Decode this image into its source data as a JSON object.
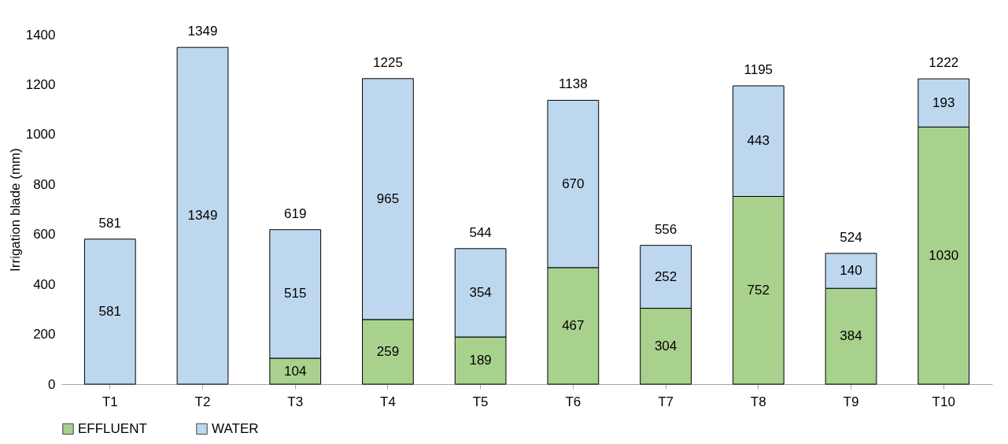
{
  "chart_data": {
    "type": "bar",
    "stacked": true,
    "ylabel": "Irrigation blade (mm)",
    "categories": [
      "T1",
      "T2",
      "T3",
      "T4",
      "T5",
      "T6",
      "T7",
      "T8",
      "T9",
      "T10"
    ],
    "series": [
      {
        "name": "EFFLUENT",
        "color": "#a9d18e",
        "values": [
          null,
          null,
          104,
          259,
          189,
          467,
          304,
          752,
          384,
          1030
        ]
      },
      {
        "name": "WATER",
        "color": "#bdd7ee",
        "values": [
          581,
          1349,
          515,
          965,
          354,
          670,
          252,
          443,
          140,
          193
        ]
      }
    ],
    "totals": [
      "581",
      "1349",
      "619",
      "1225",
      "544",
      "1138",
      "556",
      "1195",
      "524",
      "1222"
    ],
    "ylim": [
      0,
      1400
    ],
    "yticks": [
      0,
      200,
      400,
      600,
      800,
      1000,
      1200,
      1400
    ],
    "data_labels": true,
    "grid": false,
    "legend": "bottom"
  }
}
